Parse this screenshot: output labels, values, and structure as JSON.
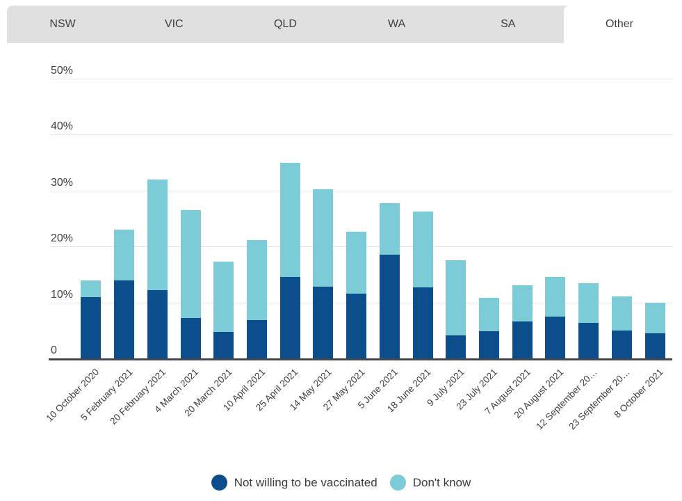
{
  "tabs": {
    "items": [
      {
        "label": "NSW",
        "active": false
      },
      {
        "label": "VIC",
        "active": false
      },
      {
        "label": "QLD",
        "active": false
      },
      {
        "label": "WA",
        "active": false
      },
      {
        "label": "SA",
        "active": false
      },
      {
        "label": "Other",
        "active": true
      }
    ]
  },
  "colors": {
    "tabbar_background": "#e0e0e0",
    "active_tab_background": "#ffffff",
    "gridline": "#e5e5e5",
    "axis_line": "#45484d",
    "text": "#3d3d3d"
  },
  "chart_data": {
    "type": "bar",
    "stacked": true,
    "categories": [
      "10 October 2020",
      "5 February 2021",
      "20 February 2021",
      "4 March 2021",
      "20 March 2021",
      "10 April 2021",
      "25 April 2021",
      "14 May 2021",
      "27 May 2021",
      "5 June 2021",
      "18 June 2021",
      "9 July 2021",
      "23 July 2021",
      "7 August 2021",
      "20 August 2021",
      "12 September 20…",
      "23 September 20…",
      "8 October 2021"
    ],
    "series": [
      {
        "name": "Not willing to be vaccinated",
        "color": "#0c4d8c",
        "values": [
          11.0,
          13.9,
          12.2,
          7.2,
          4.7,
          6.9,
          14.5,
          12.8,
          11.6,
          18.6,
          12.7,
          4.1,
          4.9,
          6.6,
          7.5,
          6.4,
          5.0,
          4.5
        ]
      },
      {
        "name": "Don't know",
        "color": "#7bccd7",
        "values": [
          3.0,
          9.1,
          19.8,
          19.3,
          12.6,
          14.2,
          20.4,
          17.4,
          11.0,
          9.2,
          13.5,
          13.5,
          5.9,
          6.5,
          7.1,
          7.0,
          6.1,
          5.4
        ]
      }
    ],
    "ylim": [
      0,
      50
    ],
    "yticks": [
      {
        "label": "50%",
        "value": 50
      },
      {
        "label": "40%",
        "value": 40
      },
      {
        "label": "30%",
        "value": 30
      },
      {
        "label": "20%",
        "value": 20
      },
      {
        "label": "10%",
        "value": 10
      },
      {
        "label": "0",
        "value": 0
      }
    ],
    "grid": "horizontal",
    "legend_position": "bottom",
    "xlabel": "",
    "ylabel": ""
  }
}
